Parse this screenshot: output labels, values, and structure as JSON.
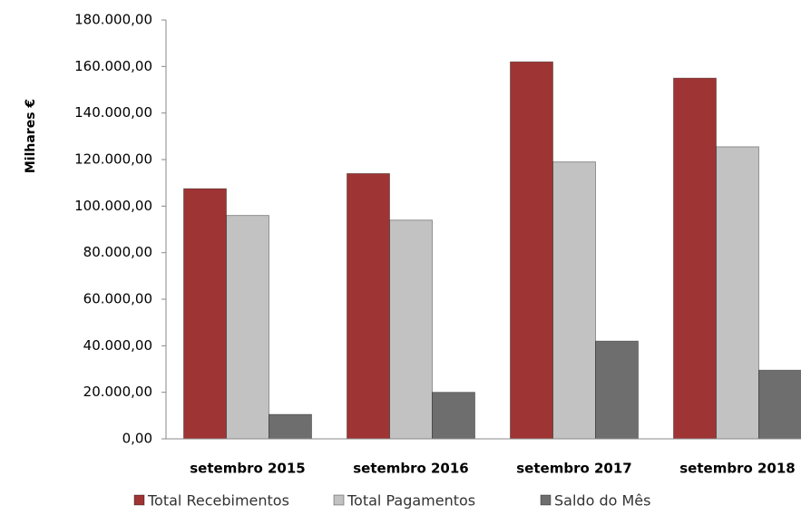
{
  "chart_data": {
    "type": "bar",
    "y_label": "Milhares €",
    "categories": [
      "setembro 2015",
      "setembro 2016",
      "setembro 2017",
      "setembro 2018"
    ],
    "series": [
      {
        "name": "Total Recebimentos",
        "color": "#9e3434",
        "values": [
          107500,
          114000,
          162000,
          155000
        ]
      },
      {
        "name": "Total Pagamentos",
        "color": "#c2c2c2",
        "values": [
          96000,
          94000,
          119000,
          125500
        ]
      },
      {
        "name": "Saldo do Mês",
        "color": "#6e6e6e",
        "values": [
          10500,
          20000,
          42000,
          29500
        ]
      }
    ],
    "ylim": [
      0,
      180000
    ],
    "yticks": [
      {
        "value": 0,
        "label": "0,00"
      },
      {
        "value": 20000,
        "label": "20.000,00"
      },
      {
        "value": 40000,
        "label": "40.000,00"
      },
      {
        "value": 60000,
        "label": "60.000,00"
      },
      {
        "value": 80000,
        "label": "80.000,00"
      },
      {
        "value": 100000,
        "label": "100.000,00"
      },
      {
        "value": 120000,
        "label": "120.000,00"
      },
      {
        "value": 140000,
        "label": "140.000,00"
      },
      {
        "value": 160000,
        "label": "160.000,00"
      },
      {
        "value": 180000,
        "label": "180.000,00"
      }
    ],
    "grid": false,
    "legend": "bottom"
  }
}
